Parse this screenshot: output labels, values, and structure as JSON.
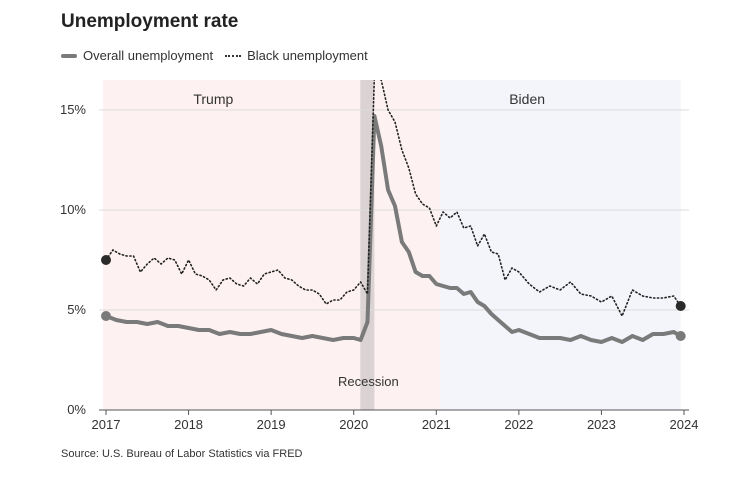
{
  "chart_data": {
    "type": "line",
    "title": "Unemployment rate",
    "source": "Source: U.S. Bureau of Labor Statistics via FRED",
    "xlabel": "",
    "ylabel": "",
    "xlim": [
      2017.0,
      2024.0
    ],
    "ylim": [
      0,
      17
    ],
    "y_ticks": [
      0,
      5,
      10,
      15
    ],
    "y_tick_labels": [
      "0%",
      "5%",
      "10%",
      "15%"
    ],
    "x_ticks": [
      2017,
      2018,
      2019,
      2020,
      2021,
      2022,
      2023,
      2024
    ],
    "x_tick_labels": [
      "2017",
      "2018",
      "2019",
      "2020",
      "2021",
      "2022",
      "2023",
      "2024"
    ],
    "regions": [
      {
        "name": "Trump",
        "label": "Trump",
        "start": 2017.0,
        "end": 2021.05,
        "color": "#fdf1f1"
      },
      {
        "name": "Biden",
        "label": "Biden",
        "start": 2021.05,
        "end": 2023.96,
        "color": "#f3f5fa"
      }
    ],
    "recession": {
      "label": "Recession",
      "start": 2020.08,
      "end": 2020.25,
      "color": "#dbd3d3"
    },
    "series": [
      {
        "name": "Overall unemployment",
        "style": "solid",
        "color": "#7a7a7a",
        "x": [
          2017.0,
          2017.125,
          2017.25,
          2017.375,
          2017.5,
          2017.625,
          2017.75,
          2017.875,
          2018.0,
          2018.125,
          2018.25,
          2018.375,
          2018.5,
          2018.625,
          2018.75,
          2018.875,
          2019.0,
          2019.125,
          2019.25,
          2019.375,
          2019.5,
          2019.625,
          2019.75,
          2019.875,
          2020.0,
          2020.083,
          2020.167,
          2020.25,
          2020.333,
          2020.417,
          2020.5,
          2020.583,
          2020.667,
          2020.75,
          2020.833,
          2020.917,
          2021.0,
          2021.083,
          2021.167,
          2021.25,
          2021.333,
          2021.417,
          2021.5,
          2021.583,
          2021.667,
          2021.75,
          2021.833,
          2021.917,
          2022.0,
          2022.125,
          2022.25,
          2022.375,
          2022.5,
          2022.625,
          2022.75,
          2022.875,
          2023.0,
          2023.125,
          2023.25,
          2023.375,
          2023.5,
          2023.625,
          2023.75,
          2023.875,
          2023.96
        ],
        "y": [
          4.7,
          4.5,
          4.4,
          4.4,
          4.3,
          4.4,
          4.2,
          4.2,
          4.1,
          4.0,
          4.0,
          3.8,
          3.9,
          3.8,
          3.8,
          3.9,
          4.0,
          3.8,
          3.7,
          3.6,
          3.7,
          3.6,
          3.5,
          3.6,
          3.6,
          3.5,
          4.4,
          14.7,
          13.2,
          11.0,
          10.2,
          8.4,
          7.9,
          6.9,
          6.7,
          6.7,
          6.3,
          6.2,
          6.1,
          6.1,
          5.8,
          5.9,
          5.4,
          5.2,
          4.8,
          4.5,
          4.2,
          3.9,
          4.0,
          3.8,
          3.6,
          3.6,
          3.6,
          3.5,
          3.7,
          3.5,
          3.4,
          3.6,
          3.4,
          3.7,
          3.5,
          3.8,
          3.8,
          3.9,
          3.7
        ]
      },
      {
        "name": "Black unemployment",
        "style": "dotted",
        "color": "#222222",
        "x": [
          2017.0,
          2017.083,
          2017.167,
          2017.25,
          2017.333,
          2017.417,
          2017.5,
          2017.583,
          2017.667,
          2017.75,
          2017.833,
          2017.917,
          2018.0,
          2018.083,
          2018.167,
          2018.25,
          2018.333,
          2018.417,
          2018.5,
          2018.583,
          2018.667,
          2018.75,
          2018.833,
          2018.917,
          2019.0,
          2019.083,
          2019.167,
          2019.25,
          2019.333,
          2019.417,
          2019.5,
          2019.583,
          2019.667,
          2019.75,
          2019.833,
          2019.917,
          2020.0,
          2020.083,
          2020.167,
          2020.25,
          2020.333,
          2020.417,
          2020.5,
          2020.583,
          2020.667,
          2020.75,
          2020.833,
          2020.917,
          2021.0,
          2021.083,
          2021.167,
          2021.25,
          2021.333,
          2021.417,
          2021.5,
          2021.583,
          2021.667,
          2021.75,
          2021.833,
          2021.917,
          2022.0,
          2022.125,
          2022.25,
          2022.375,
          2022.5,
          2022.625,
          2022.75,
          2022.875,
          2023.0,
          2023.125,
          2023.25,
          2023.375,
          2023.5,
          2023.625,
          2023.75,
          2023.875,
          2023.96
        ],
        "y": [
          7.5,
          8.0,
          7.8,
          7.7,
          7.7,
          6.9,
          7.3,
          7.6,
          7.3,
          7.6,
          7.5,
          6.8,
          7.5,
          6.8,
          6.7,
          6.5,
          6.0,
          6.5,
          6.6,
          6.3,
          6.2,
          6.6,
          6.3,
          6.8,
          6.9,
          7.0,
          6.6,
          6.5,
          6.2,
          6.0,
          6.0,
          5.8,
          5.3,
          5.5,
          5.5,
          5.9,
          6.0,
          6.4,
          5.8,
          16.7,
          16.5,
          15.0,
          14.4,
          13.0,
          12.1,
          10.8,
          10.3,
          10.1,
          9.2,
          9.9,
          9.6,
          9.9,
          9.1,
          9.2,
          8.2,
          8.8,
          7.9,
          7.8,
          6.5,
          7.1,
          6.9,
          6.3,
          5.9,
          6.2,
          6.0,
          6.4,
          5.8,
          5.7,
          5.4,
          5.7,
          4.7,
          6.0,
          5.7,
          5.6,
          5.6,
          5.7,
          5.2
        ]
      }
    ]
  }
}
